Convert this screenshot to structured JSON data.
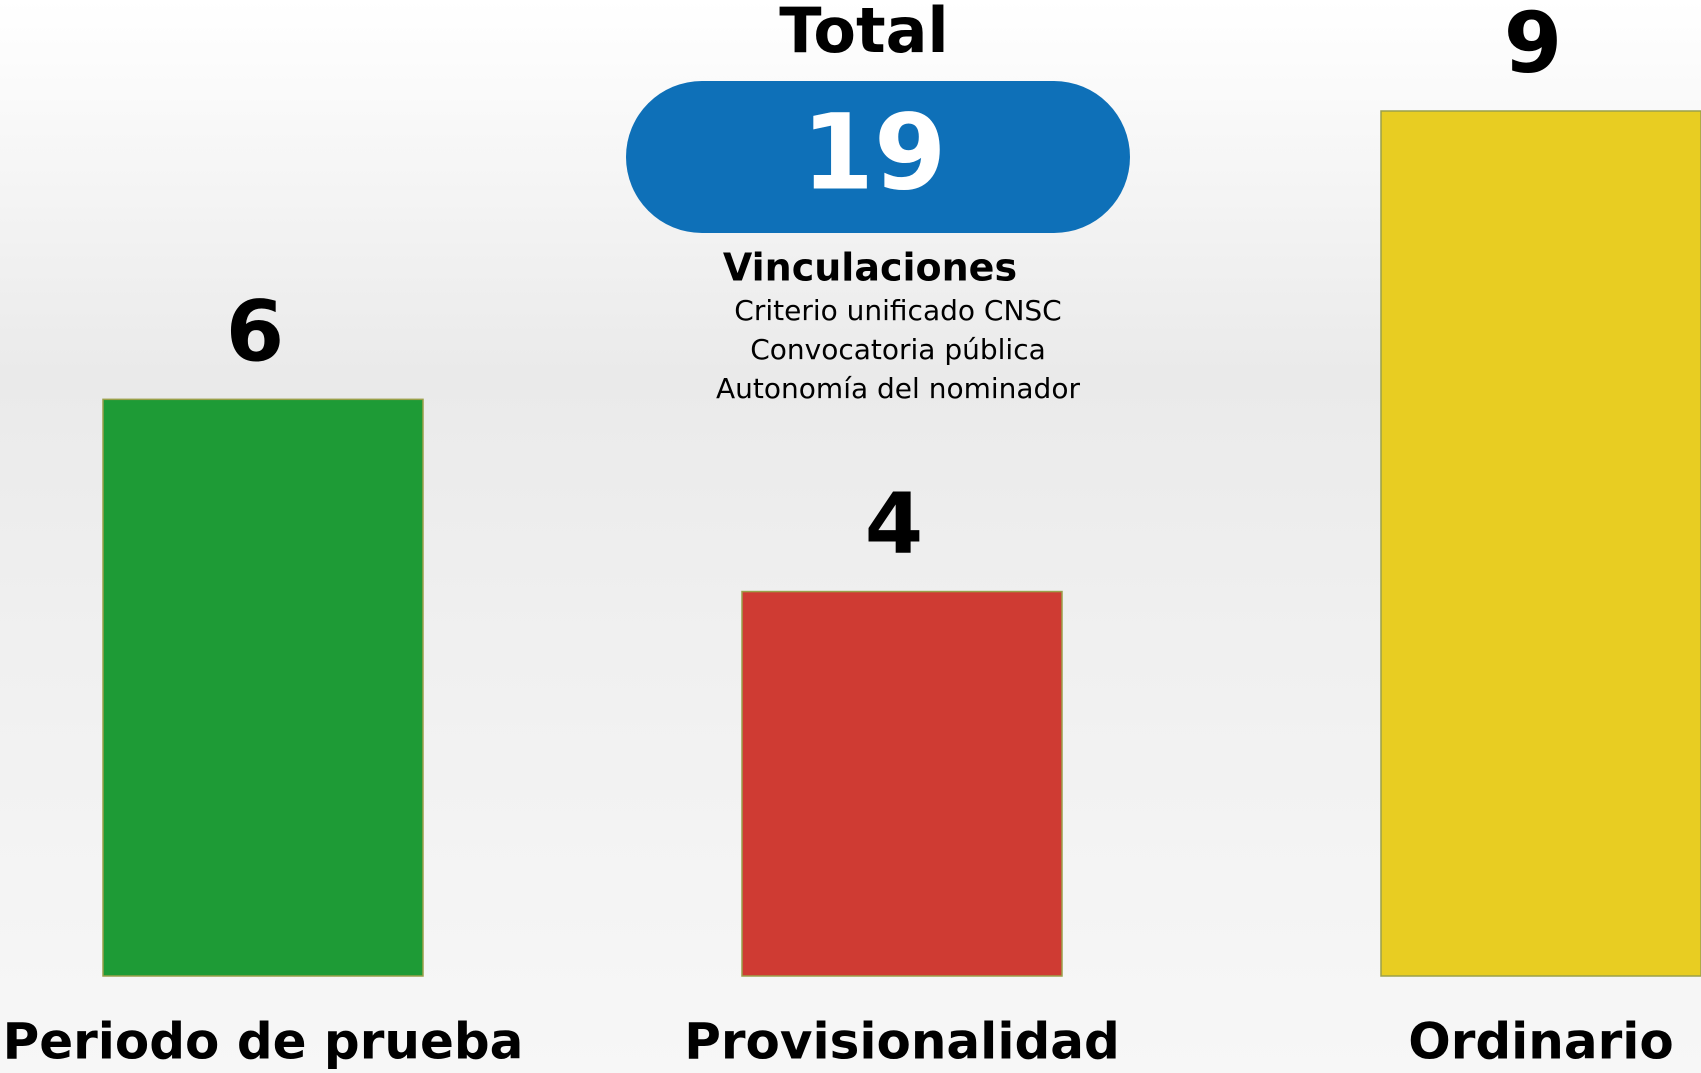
{
  "chart_data": {
    "type": "bar",
    "total_label": "Total",
    "total": 19,
    "subtitle": "Vinculaciones",
    "annotations": [
      "Criterio unificado CNSC",
      "Convocatoria pública",
      "Autonomía del nominador"
    ],
    "categories": [
      "Periodo de prueba",
      "Provisionalidad",
      "Ordinario"
    ],
    "values": [
      6,
      4,
      9
    ],
    "colors": [
      "#1e9b36",
      "#cf3b33",
      "#e8cd22"
    ],
    "total_color": "#0e70b8"
  }
}
